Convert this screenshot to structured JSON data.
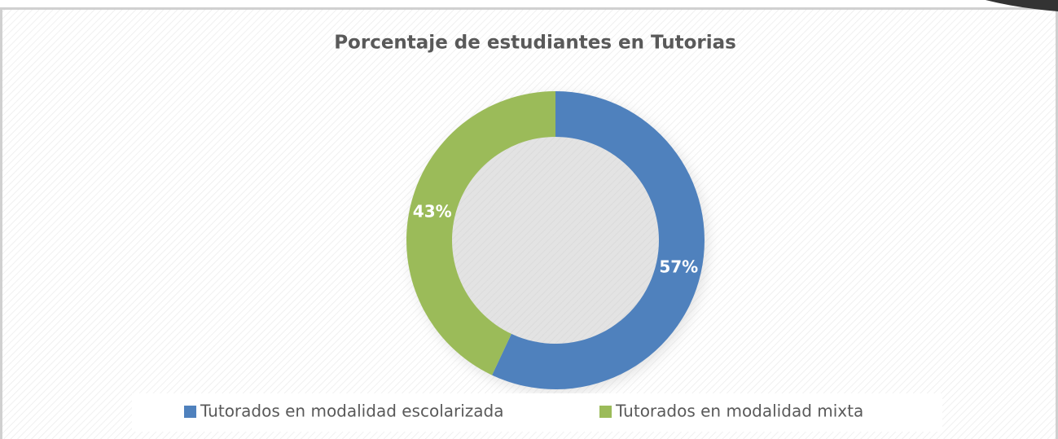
{
  "chart_data": {
    "type": "doughnut",
    "title": "Porcentaje de estudiantes en Tutorias",
    "categories": [
      "Tutorados en modalidad escolarizada",
      "Tutorados en modalidad mixta"
    ],
    "values": [
      57,
      43
    ],
    "value_labels": [
      "57%",
      "43%"
    ],
    "colors": [
      "#4f81bd",
      "#9bbb59"
    ],
    "legend": "bottom"
  }
}
